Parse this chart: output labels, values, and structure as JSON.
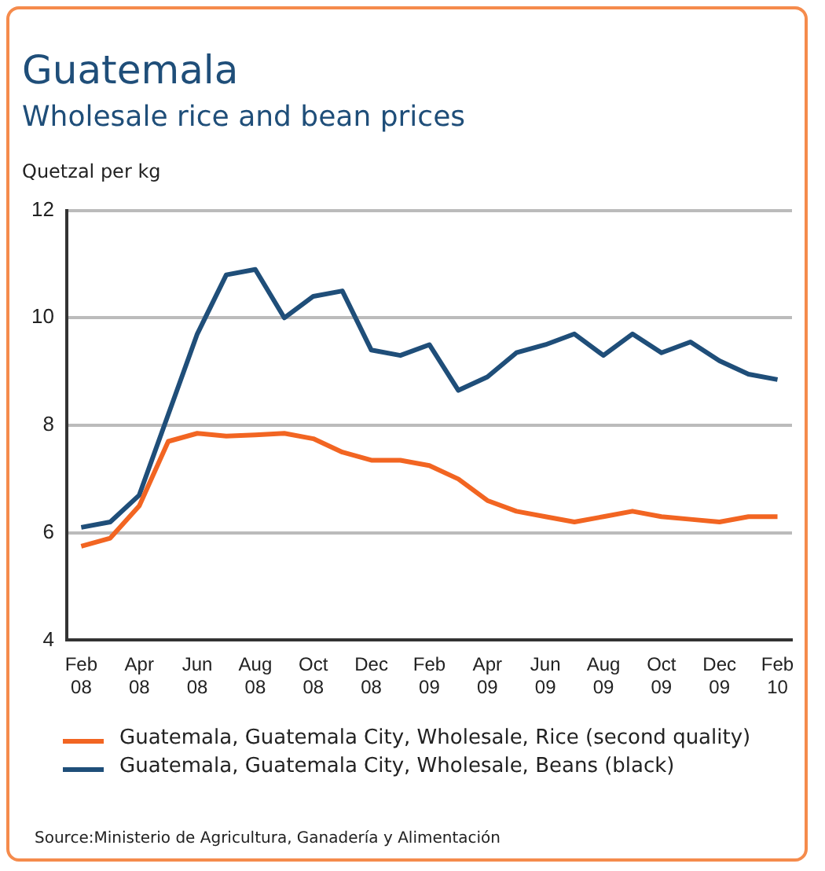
{
  "chart_data": {
    "type": "line",
    "title": "Guatemala",
    "subtitle": "Wholesale rice and bean prices",
    "ylabel": "Quetzal per kg",
    "categories": [
      "Feb 08",
      null,
      "Apr 08",
      null,
      "Jun 08",
      null,
      "Aug 08",
      null,
      "Oct 08",
      null,
      "Dec 08",
      null,
      "Feb 09",
      null,
      "Apr 09",
      null,
      "Jun 09",
      null,
      "Aug 09",
      null,
      "Oct 09",
      null,
      "Dec 09",
      null,
      "Feb 10"
    ],
    "series": [
      {
        "name": "Guatemala, Guatemala City, Wholesale, Rice (second quality)",
        "color": "#f26522",
        "values": [
          5.75,
          5.9,
          6.5,
          7.7,
          7.85,
          7.8,
          7.82,
          7.85,
          7.75,
          7.5,
          7.35,
          7.35,
          7.25,
          7.0,
          6.6,
          6.4,
          6.3,
          6.2,
          6.3,
          6.4,
          6.3,
          6.25,
          6.2,
          6.3,
          6.3
        ]
      },
      {
        "name": "Guatemala, Guatemala City, Wholesale, Beans (black)",
        "color": "#1f4e79",
        "values": [
          6.1,
          6.2,
          6.7,
          8.2,
          9.7,
          10.8,
          10.9,
          10.0,
          10.4,
          10.5,
          9.4,
          9.3,
          9.5,
          8.65,
          8.9,
          9.35,
          9.5,
          9.7,
          9.3,
          9.7,
          9.35,
          9.55,
          9.2,
          8.95,
          8.85
        ]
      }
    ],
    "ylim": [
      4,
      12
    ],
    "yticks": [
      4,
      6,
      8,
      10,
      12
    ],
    "grid": "y",
    "legend": "bottom",
    "marker": "none",
    "line_style": "solid",
    "annotations": [
      "Source:Ministerio de Agricultura, Ganadería y Alimentación"
    ]
  }
}
